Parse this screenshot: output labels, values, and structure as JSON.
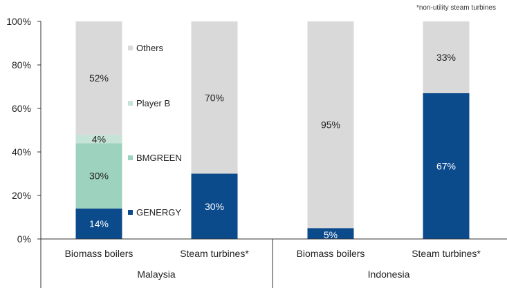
{
  "note": "*non-utility steam turbines",
  "chart_data": {
    "type": "bar",
    "stacked": true,
    "percent_scale": true,
    "ylim": [
      0,
      100
    ],
    "y_ticks": [
      "0%",
      "20%",
      "40%",
      "60%",
      "80%",
      "100%"
    ],
    "categories": [
      "Biomass boilers",
      "Steam turbines*",
      "Biomass boilers",
      "Steam turbines*"
    ],
    "groups": [
      {
        "label": "Malaysia",
        "categories": [
          0,
          1
        ]
      },
      {
        "label": "Indonesia",
        "categories": [
          2,
          3
        ]
      }
    ],
    "series": [
      {
        "name": "GENERGY",
        "color": "#0b4a8b",
        "label_color": "#ffffff",
        "values": [
          14,
          30,
          5,
          67
        ],
        "labels": [
          "14%",
          "30%",
          "5%",
          "67%"
        ]
      },
      {
        "name": "BMGREEN",
        "color": "#9dd2bf",
        "label_color": "#222222",
        "values": [
          30,
          0,
          0,
          0
        ],
        "labels": [
          "30%",
          "",
          "",
          ""
        ]
      },
      {
        "name": "Player B",
        "color": "#c5e3d6",
        "label_color": "#222222",
        "values": [
          4,
          0,
          0,
          0
        ],
        "labels": [
          "4%",
          "",
          "",
          ""
        ]
      },
      {
        "name": "Others",
        "color": "#d9d9d9",
        "label_color": "#222222",
        "values": [
          52,
          70,
          95,
          33
        ],
        "labels": [
          "52%",
          "70%",
          "95%",
          "33%"
        ]
      }
    ],
    "legend_position": "inside, between first and second bars",
    "grid": false
  }
}
